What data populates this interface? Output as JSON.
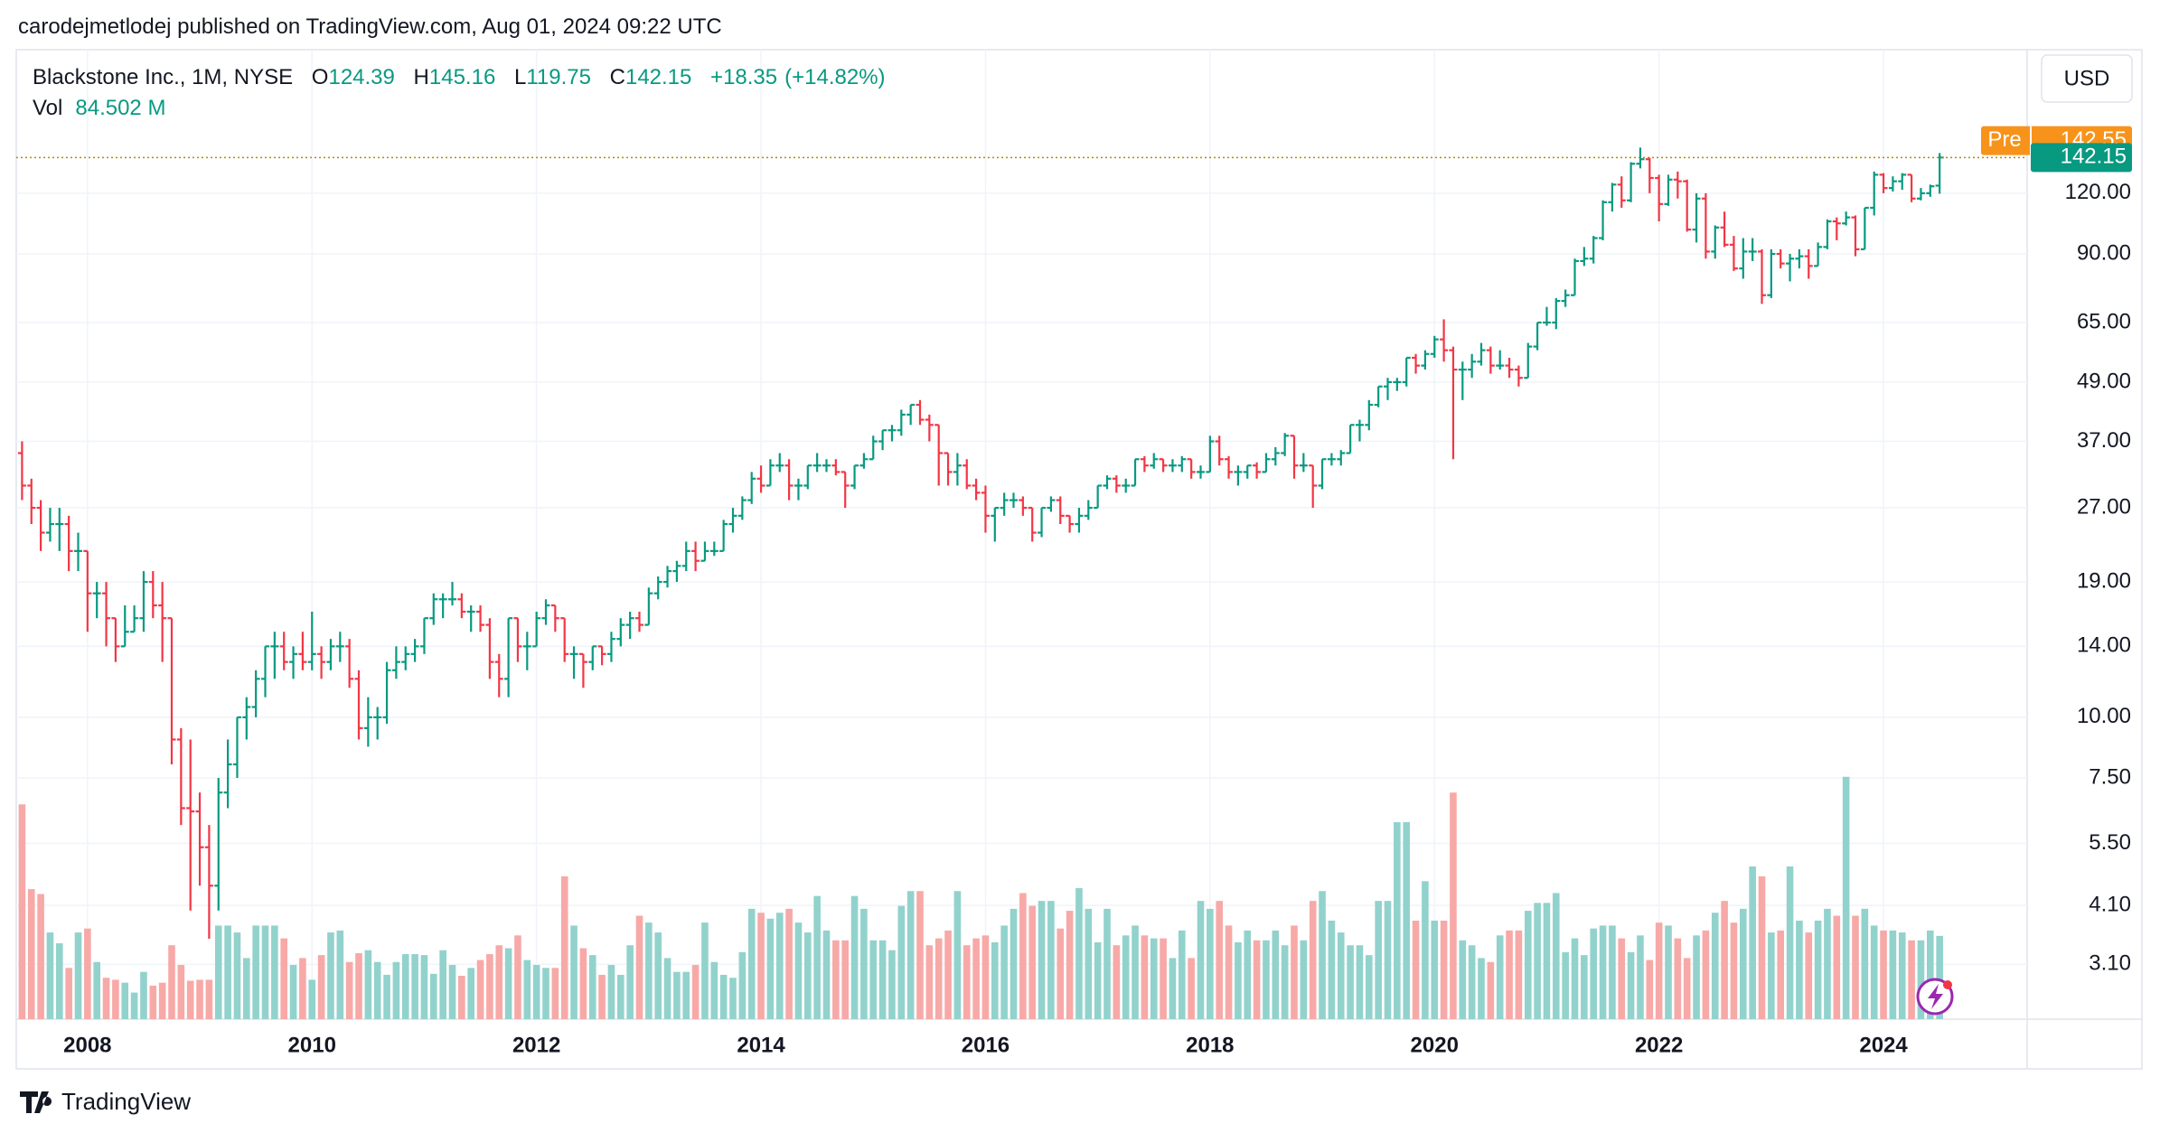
{
  "header": {
    "publisher": "carodejmetlodej published on TradingView.com, Aug 01, 2024 09:22 UTC"
  },
  "footer": {
    "brand": "TradingView"
  },
  "chart_data": {
    "type": "ohlc",
    "title": "Blackstone Inc., 1M, NYSE",
    "legend": {
      "open_label": "O",
      "open": 124.39,
      "high_label": "H",
      "high": 145.16,
      "low_label": "L",
      "low": 119.75,
      "close_label": "C",
      "close": 142.15,
      "change": "+18.35",
      "change_pct": "(+14.82%)",
      "volume_label": "Vol",
      "volume": "84.502 M"
    },
    "currency": "USD",
    "pre_label": "Pre",
    "pre_price": 142.55,
    "last_price": 142.15,
    "log_scale": true,
    "grid": true,
    "up_color": "#089981",
    "down_color": "#f23645",
    "volume_up_color": "#92d2cc",
    "volume_down_color": "#f7a9a7",
    "pre_color": "#f7931a",
    "ylim": [
      2.39,
      237
    ],
    "yticks": [
      {
        "value": 3.1,
        "label": "3.10"
      },
      {
        "value": 4.1,
        "label": "4.10"
      },
      {
        "value": 5.5,
        "label": "5.50"
      },
      {
        "value": 7.5,
        "label": "7.50"
      },
      {
        "value": 10,
        "label": "10.00"
      },
      {
        "value": 14,
        "label": "14.00"
      },
      {
        "value": 19,
        "label": "19.00"
      },
      {
        "value": 27,
        "label": "27.00"
      },
      {
        "value": 37,
        "label": "37.00"
      },
      {
        "value": 49,
        "label": "49.00"
      },
      {
        "value": 65,
        "label": "65.00"
      },
      {
        "value": 90,
        "label": "90.00"
      },
      {
        "value": 120,
        "label": "120.00"
      }
    ],
    "categories": [
      null,
      null,
      null,
      null,
      null,
      null,
      null,
      "2008",
      null,
      null,
      null,
      null,
      null,
      null,
      null,
      null,
      null,
      null,
      null,
      null,
      null,
      null,
      null,
      null,
      null,
      null,
      null,
      null,
      null,
      null,
      null,
      "2010",
      null,
      null,
      null,
      null,
      null,
      null,
      null,
      null,
      null,
      null,
      null,
      null,
      null,
      null,
      null,
      null,
      null,
      null,
      null,
      null,
      null,
      null,
      null,
      "2012",
      null,
      null,
      null,
      null,
      null,
      null,
      null,
      null,
      null,
      null,
      null,
      null,
      null,
      null,
      null,
      null,
      null,
      null,
      null,
      null,
      null,
      null,
      null,
      "2014",
      null,
      null,
      null,
      null,
      null,
      null,
      null,
      null,
      null,
      null,
      null,
      null,
      null,
      null,
      null,
      null,
      null,
      null,
      null,
      null,
      null,
      null,
      null,
      "2016",
      null,
      null,
      null,
      null,
      null,
      null,
      null,
      null,
      null,
      null,
      null,
      null,
      null,
      null,
      null,
      null,
      null,
      null,
      null,
      null,
      null,
      null,
      null,
      "2018",
      null,
      null,
      null,
      null,
      null,
      null,
      null,
      null,
      null,
      null,
      null,
      null,
      null,
      null,
      null,
      null,
      null,
      null,
      null,
      null,
      null,
      null,
      null,
      "2020",
      null,
      null,
      null,
      null,
      null,
      null,
      null,
      null,
      null,
      null,
      null,
      null,
      null,
      null,
      null,
      null,
      null,
      null,
      null,
      null,
      null,
      null,
      null,
      "2022",
      null,
      null,
      null,
      null,
      null,
      null,
      null,
      null,
      null,
      null,
      null,
      null,
      null,
      null,
      null,
      null,
      null,
      null,
      null,
      null,
      null,
      null,
      null,
      "2024",
      null,
      null,
      null,
      null,
      null,
      null
    ],
    "ohlc": [
      [
        35,
        37,
        28,
        30
      ],
      [
        30,
        31,
        25,
        27
      ],
      [
        27,
        28,
        22,
        24
      ],
      [
        24,
        27,
        23,
        25
      ],
      [
        25,
        27,
        22,
        25
      ],
      [
        25,
        26,
        20,
        22
      ],
      [
        22,
        24,
        20,
        22
      ],
      [
        22,
        22,
        15,
        18
      ],
      [
        18,
        19,
        16,
        18
      ],
      [
        18,
        19,
        14,
        16
      ],
      [
        16,
        16,
        13,
        14
      ],
      [
        14,
        17,
        14,
        15
      ],
      [
        15,
        17,
        15,
        16
      ],
      [
        16,
        20,
        15,
        19
      ],
      [
        19,
        20,
        16,
        17
      ],
      [
        17,
        19,
        13,
        16
      ],
      [
        16,
        16,
        8,
        9
      ],
      [
        9,
        9.5,
        6,
        6.5
      ],
      [
        6.5,
        9,
        4,
        6.4
      ],
      [
        6.4,
        7,
        4.5,
        5.4
      ],
      [
        5.4,
        6,
        3.5,
        4.5
      ],
      [
        4.5,
        7.5,
        4,
        7
      ],
      [
        7,
        9,
        6.5,
        8
      ],
      [
        8,
        10,
        7.5,
        10
      ],
      [
        10,
        11,
        9,
        10.5
      ],
      [
        10.5,
        12.5,
        10,
        12
      ],
      [
        12,
        14,
        11,
        14
      ],
      [
        14,
        15,
        12,
        14
      ],
      [
        14,
        15,
        12.5,
        13
      ],
      [
        13,
        14,
        12,
        13.5
      ],
      [
        13.5,
        15,
        12.5,
        13
      ],
      [
        13,
        16.5,
        12.5,
        13.5
      ],
      [
        13.5,
        14,
        12,
        13
      ],
      [
        13,
        14.5,
        12.5,
        14
      ],
      [
        14,
        15,
        13,
        14
      ],
      [
        14,
        14.5,
        11.5,
        12
      ],
      [
        12,
        12.5,
        9,
        9.5
      ],
      [
        9.5,
        11,
        8.7,
        10
      ],
      [
        10,
        10.5,
        9,
        10
      ],
      [
        10,
        13,
        9.7,
        12.5
      ],
      [
        12.5,
        14,
        12,
        13
      ],
      [
        13,
        14,
        12.5,
        13.5
      ],
      [
        13.5,
        14.5,
        13,
        14
      ],
      [
        14,
        16,
        13.5,
        16
      ],
      [
        16,
        18,
        15.5,
        17.5
      ],
      [
        17.5,
        18,
        16,
        17.5
      ],
      [
        17.5,
        19,
        17,
        17.5
      ],
      [
        17.5,
        18,
        16,
        16.5
      ],
      [
        16.5,
        17,
        15,
        16.5
      ],
      [
        16.5,
        17,
        15,
        15.5
      ],
      [
        15.5,
        16,
        12,
        13
      ],
      [
        13,
        13.5,
        11,
        12
      ],
      [
        12,
        16,
        11,
        16
      ],
      [
        16,
        16,
        13,
        14
      ],
      [
        14,
        15,
        12.5,
        14
      ],
      [
        14,
        16.5,
        14,
        16
      ],
      [
        16,
        17.5,
        15.5,
        17
      ],
      [
        17,
        17,
        15,
        16
      ],
      [
        16,
        16,
        13,
        13.5
      ],
      [
        13.5,
        14,
        12,
        13.5
      ],
      [
        13.5,
        13.5,
        11.5,
        13
      ],
      [
        13,
        14,
        12.5,
        14
      ],
      [
        14,
        14,
        12.8,
        13.5
      ],
      [
        13.5,
        15,
        13,
        14.5
      ],
      [
        14.5,
        16,
        14,
        15.5
      ],
      [
        15.5,
        16.5,
        14.5,
        16
      ],
      [
        16,
        16.5,
        15,
        15.5
      ],
      [
        15.5,
        18.5,
        15.5,
        18
      ],
      [
        18,
        19.5,
        17.5,
        19
      ],
      [
        19,
        20.5,
        18.5,
        20
      ],
      [
        20,
        21,
        19,
        20.5
      ],
      [
        20.5,
        23,
        20,
        22
      ],
      [
        22,
        23,
        20,
        21
      ],
      [
        21,
        23,
        21,
        22
      ],
      [
        22,
        23,
        21.5,
        22
      ],
      [
        22,
        25.5,
        22,
        25
      ],
      [
        25,
        27,
        24,
        26
      ],
      [
        26,
        28.5,
        25.5,
        28
      ],
      [
        28,
        32,
        27.5,
        31
      ],
      [
        31,
        33,
        29,
        30
      ],
      [
        30,
        34,
        30,
        33
      ],
      [
        33,
        35,
        32,
        33
      ],
      [
        33,
        34,
        28,
        30
      ],
      [
        30,
        31,
        28,
        30
      ],
      [
        30,
        33,
        29.5,
        33
      ],
      [
        33,
        35,
        32,
        33
      ],
      [
        33,
        34,
        32,
        33
      ],
      [
        33,
        34,
        31.5,
        32
      ],
      [
        32,
        32,
        27,
        30
      ],
      [
        30,
        33,
        29.5,
        33
      ],
      [
        33,
        35,
        32.5,
        34
      ],
      [
        34,
        38,
        34,
        37
      ],
      [
        37,
        39,
        35.5,
        39
      ],
      [
        39,
        40,
        37,
        39
      ],
      [
        39,
        43,
        38,
        42
      ],
      [
        42,
        44,
        40,
        44
      ],
      [
        44,
        45,
        40,
        41
      ],
      [
        41,
        42,
        37,
        40
      ],
      [
        40,
        40,
        30,
        35
      ],
      [
        35,
        35,
        30,
        32
      ],
      [
        32,
        35,
        30,
        33
      ],
      [
        33,
        34,
        29.5,
        30
      ],
      [
        30,
        31,
        28,
        29
      ],
      [
        29,
        30,
        24,
        26
      ],
      [
        26,
        27,
        23,
        27
      ],
      [
        27,
        29,
        26,
        28
      ],
      [
        28,
        29,
        27,
        28
      ],
      [
        28,
        28.5,
        26,
        27
      ],
      [
        27,
        27,
        23,
        24
      ],
      [
        24,
        27,
        23.5,
        27
      ],
      [
        27,
        28.5,
        26.5,
        28
      ],
      [
        28,
        28.5,
        25,
        26
      ],
      [
        26,
        26,
        24,
        25
      ],
      [
        25,
        27,
        24,
        26
      ],
      [
        26,
        28,
        25.5,
        27
      ],
      [
        27,
        30,
        27,
        30
      ],
      [
        30,
        31.5,
        29.5,
        31
      ],
      [
        31,
        31.5,
        29,
        30
      ],
      [
        30,
        31,
        29,
        30
      ],
      [
        30,
        34,
        30,
        34
      ],
      [
        34,
        34.5,
        32,
        33
      ],
      [
        33,
        35,
        32.5,
        34
      ],
      [
        34,
        34,
        32,
        33
      ],
      [
        33,
        34,
        32,
        33
      ],
      [
        33,
        34.5,
        32,
        34
      ],
      [
        34,
        34,
        31,
        32
      ],
      [
        32,
        33,
        31,
        32
      ],
      [
        32,
        38,
        32,
        37
      ],
      [
        37,
        38,
        33,
        34
      ],
      [
        34,
        34.5,
        31,
        32
      ],
      [
        32,
        33,
        30,
        32
      ],
      [
        32,
        33,
        31,
        33
      ],
      [
        33,
        33.5,
        31,
        32
      ],
      [
        32,
        35,
        32,
        34
      ],
      [
        34,
        36,
        33,
        35
      ],
      [
        35,
        38.5,
        34.5,
        38
      ],
      [
        38,
        38,
        31,
        33
      ],
      [
        33,
        35,
        32,
        33
      ],
      [
        33,
        33,
        27,
        30
      ],
      [
        30,
        34,
        29.5,
        34
      ],
      [
        34,
        35,
        33,
        34
      ],
      [
        34,
        35.5,
        33,
        35
      ],
      [
        35,
        40,
        35,
        40
      ],
      [
        40,
        41,
        37,
        40
      ],
      [
        40,
        45,
        39,
        44
      ],
      [
        44,
        48,
        43.5,
        48
      ],
      [
        48,
        50,
        45,
        49
      ],
      [
        49,
        50,
        47,
        49
      ],
      [
        49,
        55,
        48,
        55
      ],
      [
        55,
        56,
        51,
        53
      ],
      [
        53,
        57,
        52,
        56
      ],
      [
        56,
        61,
        55,
        60
      ],
      [
        60,
        66,
        54,
        57
      ],
      [
        57,
        58,
        34,
        52
      ],
      [
        52,
        54,
        45,
        52
      ],
      [
        52,
        56,
        50,
        54
      ],
      [
        54,
        59,
        53,
        57
      ],
      [
        57,
        58,
        51,
        53
      ],
      [
        53,
        57,
        52,
        53
      ],
      [
        53,
        55,
        50,
        52
      ],
      [
        52,
        53,
        48,
        50
      ],
      [
        50,
        59,
        50,
        58
      ],
      [
        58,
        65,
        57,
        65
      ],
      [
        65,
        70,
        64,
        65
      ],
      [
        65,
        73,
        63,
        72
      ],
      [
        72,
        76,
        70,
        74
      ],
      [
        74,
        88,
        74,
        87
      ],
      [
        87,
        93,
        85,
        88
      ],
      [
        88,
        98,
        86,
        97
      ],
      [
        97,
        116,
        96,
        115
      ],
      [
        115,
        126,
        110,
        125
      ],
      [
        125,
        130,
        112,
        116
      ],
      [
        116,
        139,
        115,
        138
      ],
      [
        138,
        149,
        135,
        141
      ],
      [
        141,
        142,
        120,
        129
      ],
      [
        129,
        131,
        105,
        114
      ],
      [
        114,
        131,
        113,
        128
      ],
      [
        128,
        133,
        117,
        127
      ],
      [
        127,
        128,
        100,
        101
      ],
      [
        101,
        120,
        95,
        117
      ],
      [
        117,
        120,
        88,
        91
      ],
      [
        91,
        103,
        88,
        102
      ],
      [
        102,
        110,
        93,
        94
      ],
      [
        94,
        98,
        83,
        84
      ],
      [
        84,
        97,
        80,
        91
      ],
      [
        91,
        97,
        87,
        91
      ],
      [
        91,
        92,
        71,
        74
      ],
      [
        74,
        92,
        73,
        90
      ],
      [
        90,
        92,
        84,
        86
      ],
      [
        86,
        90,
        79,
        88
      ],
      [
        88,
        92,
        84,
        89
      ],
      [
        89,
        92,
        80,
        85
      ],
      [
        85,
        95,
        85,
        93
      ],
      [
        93,
        106,
        92,
        105
      ],
      [
        105,
        107,
        96,
        104
      ],
      [
        104,
        110,
        103,
        107
      ],
      [
        107,
        108,
        89,
        92
      ],
      [
        92,
        112,
        92,
        112
      ],
      [
        112,
        133,
        108,
        131
      ],
      [
        131,
        132,
        120,
        123
      ],
      [
        123,
        130,
        121,
        127
      ],
      [
        127,
        132,
        122,
        131
      ],
      [
        131,
        131,
        115,
        117
      ],
      [
        117,
        123,
        116,
        120
      ],
      [
        120,
        125,
        118,
        124
      ],
      [
        124.39,
        145.16,
        119.75,
        142.15
      ]
    ],
    "volume": [
      218,
      132,
      127,
      88,
      77,
      52,
      88,
      92,
      58,
      42,
      40,
      37,
      27,
      48,
      34,
      37,
      75,
      55,
      39,
      40,
      40,
      95,
      95,
      88,
      62,
      95,
      95,
      95,
      82,
      55,
      62,
      40,
      65,
      88,
      90,
      58,
      67,
      70,
      58,
      45,
      58,
      66,
      66,
      65,
      46,
      70,
      55,
      44,
      52,
      60,
      66,
      75,
      72,
      85,
      60,
      55,
      52,
      52,
      145,
      95,
      72,
      65,
      45,
      55,
      45,
      75,
      105,
      98,
      88,
      62,
      48,
      48,
      55,
      98,
      58,
      45,
      42,
      68,
      112,
      108,
      102,
      108,
      112,
      98,
      88,
      125,
      90,
      80,
      80,
      125,
      112,
      80,
      80,
      70,
      115,
      130,
      130,
      75,
      82,
      90,
      130,
      75,
      82,
      85,
      78,
      95,
      112,
      128,
      115,
      120,
      120,
      92,
      110,
      133,
      112,
      78,
      112,
      75,
      85,
      95,
      85,
      82,
      82,
      62,
      90,
      62,
      120,
      112,
      120,
      95,
      78,
      90,
      80,
      80,
      90,
      75,
      95,
      80,
      120,
      130,
      100,
      88,
      75,
      75,
      65,
      120,
      120,
      200,
      200,
      100,
      140,
      100,
      100,
      230,
      80,
      75,
      62,
      58,
      85,
      90,
      90,
      110,
      118,
      118,
      128,
      68,
      82,
      65,
      92,
      95,
      95,
      82,
      68,
      85,
      60,
      98,
      95,
      82,
      62,
      85,
      90,
      108,
      120,
      98,
      112,
      155,
      145,
      88,
      90,
      155,
      100,
      88,
      100,
      112,
      105,
      246,
      105,
      112,
      95,
      90,
      90,
      88,
      80,
      80,
      90,
      84.502
    ]
  }
}
